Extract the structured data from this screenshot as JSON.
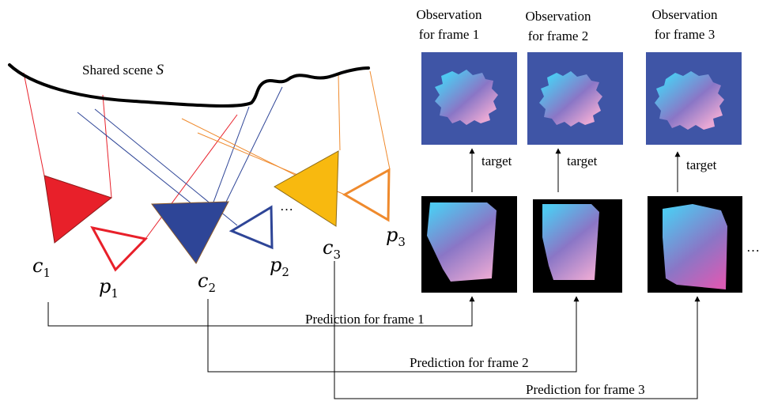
{
  "scene": {
    "label_prefix": "Shared scene ",
    "label_var": "S"
  },
  "cameras": [
    {
      "base": "c",
      "sub": "1",
      "color": "#e8202a"
    },
    {
      "base": "c",
      "sub": "2",
      "color": "#2e4597"
    },
    {
      "base": "c",
      "sub": "3",
      "color": "#f8b90f"
    }
  ],
  "projectors": [
    {
      "base": "p",
      "sub": "1",
      "color": "#e8202a"
    },
    {
      "base": "p",
      "sub": "2",
      "color": "#2e4597"
    },
    {
      "base": "p",
      "sub": "3",
      "color": "#ef8a2d"
    }
  ],
  "scene_ellipsis": "…",
  "row_ellipsis": "…",
  "frames": [
    {
      "obs_line1": "Observation",
      "obs_line2": "for frame 1",
      "target_label": "target",
      "prediction_label": "Prediction for frame 1"
    },
    {
      "obs_line1": "Observation",
      "obs_line2": "for frame 2",
      "target_label": "target",
      "prediction_label": "Prediction for frame 2"
    },
    {
      "obs_line1": "Observation",
      "obs_line2": "for frame 3",
      "target_label": "target",
      "prediction_label": "Prediction for frame 3"
    }
  ],
  "colors": {
    "observation_background": "#3f55a6",
    "prediction_background": "#000000",
    "gradient_cyan": "#4fc8f0",
    "gradient_purple": "#8a76c6",
    "gradient_pink": "#e8a8d4",
    "gradient_magenta": "#d95bb4"
  }
}
